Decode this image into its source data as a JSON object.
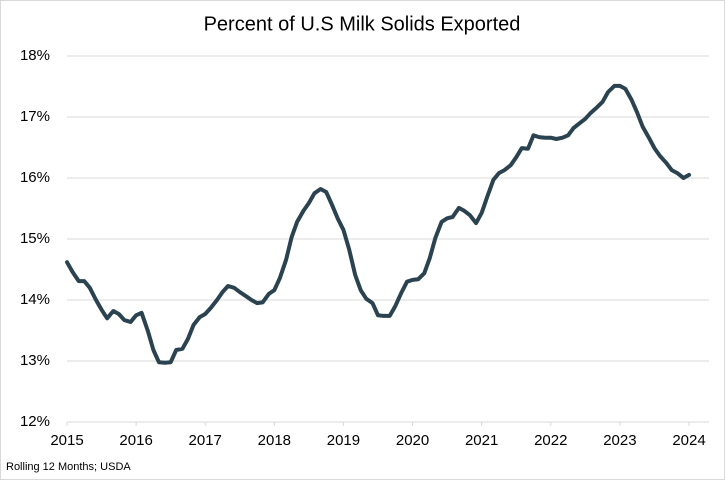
{
  "chart_data": {
    "type": "line",
    "title": "Percent of U.S Milk Solids Exported",
    "note": "Rolling 12 Months; USDA",
    "color": "#2b4350",
    "grid": true,
    "xlim": [
      2015,
      2024
    ],
    "xticks": [
      2015,
      2016,
      2017,
      2018,
      2019,
      2020,
      2021,
      2022,
      2023,
      2024
    ],
    "ylim": [
      12,
      18
    ],
    "yticks": [
      {
        "value": 12,
        "label": "12%"
      },
      {
        "value": 13,
        "label": "13%"
      },
      {
        "value": 14,
        "label": "14%"
      },
      {
        "value": 15,
        "label": "15%"
      },
      {
        "value": 16,
        "label": "16%"
      },
      {
        "value": 17,
        "label": "17%"
      },
      {
        "value": 18,
        "label": "18%"
      }
    ],
    "x": [
      2015.0,
      2015.08,
      2015.17,
      2015.25,
      2015.33,
      2015.42,
      2015.5,
      2015.58,
      2015.67,
      2015.75,
      2015.83,
      2015.92,
      2016.0,
      2016.08,
      2016.17,
      2016.25,
      2016.33,
      2016.42,
      2016.5,
      2016.58,
      2016.67,
      2016.75,
      2016.83,
      2016.92,
      2017.0,
      2017.08,
      2017.17,
      2017.25,
      2017.33,
      2017.42,
      2017.5,
      2017.58,
      2017.67,
      2017.75,
      2017.83,
      2017.92,
      2018.0,
      2018.08,
      2018.17,
      2018.25,
      2018.33,
      2018.42,
      2018.5,
      2018.58,
      2018.67,
      2018.75,
      2018.83,
      2018.92,
      2019.0,
      2019.08,
      2019.17,
      2019.25,
      2019.33,
      2019.42,
      2019.5,
      2019.58,
      2019.67,
      2019.75,
      2019.83,
      2019.92,
      2020.0,
      2020.08,
      2020.17,
      2020.25,
      2020.33,
      2020.42,
      2020.5,
      2020.58,
      2020.67,
      2020.75,
      2020.83,
      2020.92,
      2021.0,
      2021.08,
      2021.17,
      2021.25,
      2021.33,
      2021.42,
      2021.5,
      2021.58,
      2021.67,
      2021.75,
      2021.83,
      2021.92,
      2022.0,
      2022.08,
      2022.17,
      2022.25,
      2022.33,
      2022.42,
      2022.5,
      2022.58,
      2022.67,
      2022.75,
      2022.83,
      2022.92,
      2023.0,
      2023.08,
      2023.17,
      2023.25,
      2023.33,
      2023.42,
      2023.5,
      2023.58,
      2023.67,
      2023.75,
      2023.83,
      2023.92,
      2024.0
    ],
    "values": [
      14.62,
      14.46,
      14.31,
      14.31,
      14.2,
      14.0,
      13.84,
      13.7,
      13.82,
      13.77,
      13.67,
      13.64,
      13.75,
      13.79,
      13.49,
      13.18,
      12.98,
      12.97,
      12.98,
      13.18,
      13.2,
      13.36,
      13.59,
      13.72,
      13.77,
      13.87,
      14.0,
      14.13,
      14.23,
      14.2,
      14.13,
      14.07,
      14.0,
      13.95,
      13.96,
      14.1,
      14.16,
      14.36,
      14.66,
      15.03,
      15.28,
      15.46,
      15.59,
      15.75,
      15.82,
      15.77,
      15.57,
      15.33,
      15.15,
      14.84,
      14.41,
      14.16,
      14.02,
      13.95,
      13.75,
      13.74,
      13.74,
      13.9,
      14.1,
      14.3,
      14.33,
      14.34,
      14.44,
      14.69,
      15.02,
      15.28,
      15.34,
      15.36,
      15.51,
      15.46,
      15.39,
      15.26,
      15.43,
      15.69,
      15.97,
      16.08,
      16.13,
      16.21,
      16.34,
      16.49,
      16.48,
      16.7,
      16.67,
      16.66,
      16.66,
      16.64,
      16.66,
      16.7,
      16.82,
      16.9,
      16.97,
      17.07,
      17.16,
      17.25,
      17.41,
      17.51,
      17.51,
      17.46,
      17.28,
      17.07,
      16.84,
      16.66,
      16.49,
      16.36,
      16.25,
      16.13,
      16.08,
      16.0,
      16.05
    ]
  }
}
